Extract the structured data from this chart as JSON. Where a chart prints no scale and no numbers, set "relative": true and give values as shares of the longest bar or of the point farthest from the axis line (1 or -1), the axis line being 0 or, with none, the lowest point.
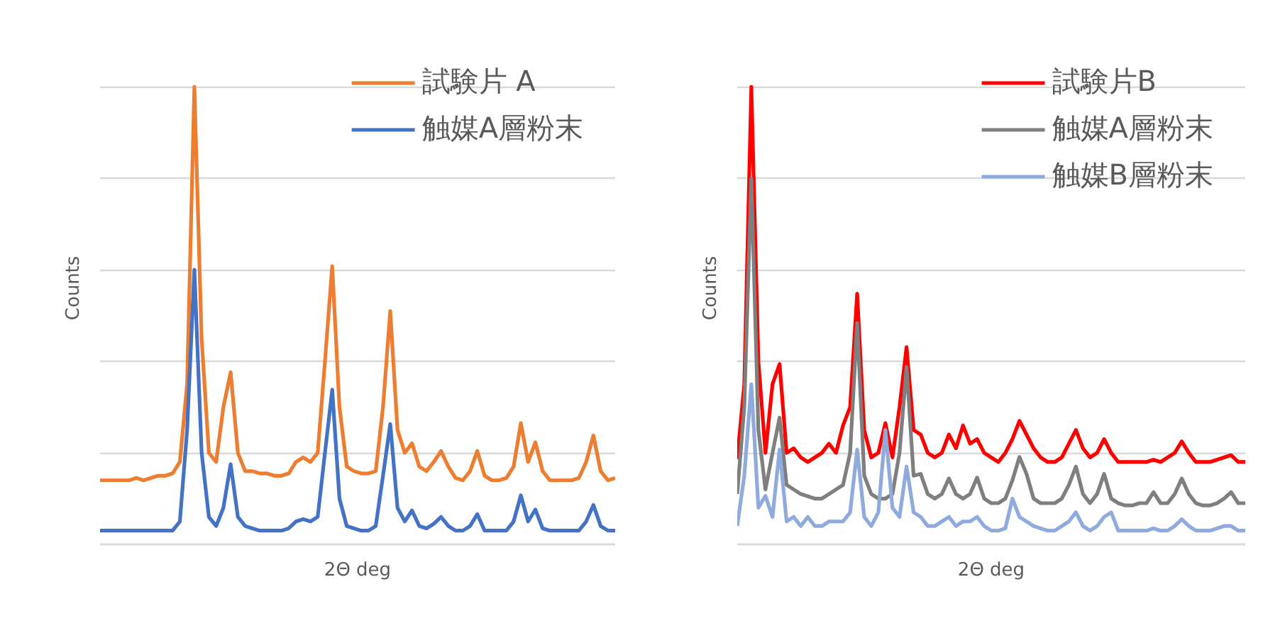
{
  "chart_data": [
    {
      "type": "line",
      "relative": true,
      "xlabel": "2Θ deg",
      "ylabel": "Counts",
      "grid": "y",
      "legend": "top right",
      "marker": "none",
      "line_style": "solid",
      "categories": [
        null,
        null,
        null,
        null,
        null,
        null,
        null,
        null,
        null,
        null,
        null,
        null,
        null,
        null,
        null,
        null,
        null,
        null,
        null,
        null,
        null,
        null,
        null,
        null,
        null,
        null,
        null,
        null,
        null,
        null,
        null,
        null,
        null,
        null,
        null,
        null,
        null,
        null,
        null,
        null,
        null,
        null,
        null,
        null,
        null,
        null,
        null,
        null,
        null,
        null,
        null,
        null,
        null,
        null,
        null,
        null,
        null,
        null,
        null,
        null,
        null,
        null,
        null,
        null,
        null,
        null,
        null,
        null,
        null,
        null,
        null,
        null
      ],
      "series": [
        {
          "name": "試験片 A",
          "color": "#ed7d31",
          "values": [
            0.14,
            0.14,
            0.14,
            0.14,
            0.14,
            0.145,
            0.14,
            0.145,
            0.15,
            0.15,
            0.155,
            0.18,
            0.35,
            1.0,
            0.45,
            0.2,
            0.18,
            0.3,
            0.376,
            0.2,
            0.16,
            0.16,
            0.155,
            0.155,
            0.15,
            0.15,
            0.155,
            0.18,
            0.19,
            0.18,
            0.2,
            0.4,
            0.608,
            0.3,
            0.17,
            0.16,
            0.155,
            0.155,
            0.16,
            0.3,
            0.51,
            0.25,
            0.2,
            0.221,
            0.17,
            0.16,
            0.18,
            0.204,
            0.17,
            0.145,
            0.14,
            0.16,
            0.204,
            0.15,
            0.14,
            0.14,
            0.145,
            0.17,
            0.265,
            0.18,
            0.223,
            0.16,
            0.14,
            0.14,
            0.14,
            0.14,
            0.145,
            0.18,
            0.238,
            0.16,
            0.14,
            0.145
          ]
        },
        {
          "name": "触媒A層粉末",
          "color": "#4472c4",
          "values": [
            0.03,
            0.03,
            0.03,
            0.03,
            0.03,
            0.03,
            0.03,
            0.03,
            0.03,
            0.03,
            0.03,
            0.05,
            0.25,
            0.6,
            0.2,
            0.06,
            0.04,
            0.08,
            0.175,
            0.06,
            0.04,
            0.035,
            0.03,
            0.03,
            0.03,
            0.03,
            0.035,
            0.05,
            0.055,
            0.05,
            0.06,
            0.2,
            0.338,
            0.1,
            0.04,
            0.035,
            0.03,
            0.03,
            0.04,
            0.15,
            0.263,
            0.08,
            0.05,
            0.074,
            0.04,
            0.035,
            0.045,
            0.06,
            0.04,
            0.03,
            0.03,
            0.04,
            0.066,
            0.03,
            0.03,
            0.03,
            0.03,
            0.05,
            0.107,
            0.05,
            0.076,
            0.035,
            0.03,
            0.03,
            0.03,
            0.03,
            0.03,
            0.05,
            0.086,
            0.04,
            0.03,
            0.03
          ]
        }
      ]
    },
    {
      "type": "line",
      "relative": true,
      "xlabel": "2Θ deg",
      "ylabel": "Counts",
      "grid": "y",
      "legend": "top right",
      "marker": "none",
      "line_style": "solid",
      "categories": [
        null,
        null,
        null,
        null,
        null,
        null,
        null,
        null,
        null,
        null,
        null,
        null,
        null,
        null,
        null,
        null,
        null,
        null,
        null,
        null,
        null,
        null,
        null,
        null,
        null,
        null,
        null,
        null,
        null,
        null,
        null,
        null,
        null,
        null,
        null,
        null,
        null,
        null,
        null,
        null,
        null,
        null,
        null,
        null,
        null,
        null,
        null,
        null,
        null,
        null,
        null,
        null,
        null,
        null,
        null,
        null,
        null,
        null,
        null,
        null,
        null,
        null,
        null,
        null,
        null,
        null,
        null,
        null,
        null,
        null,
        null,
        null,
        null
      ],
      "series": [
        {
          "name": "試験片B",
          "color": "#ff0000",
          "values": [
            0.186,
            0.35,
            1.0,
            0.4,
            0.2,
            0.35,
            0.394,
            0.2,
            0.21,
            0.19,
            0.18,
            0.19,
            0.2,
            0.22,
            0.2,
            0.26,
            0.3,
            0.548,
            0.25,
            0.19,
            0.2,
            0.265,
            0.19,
            0.3,
            0.431,
            0.25,
            0.24,
            0.2,
            0.19,
            0.2,
            0.24,
            0.21,
            0.26,
            0.22,
            0.23,
            0.2,
            0.19,
            0.18,
            0.2,
            0.23,
            0.27,
            0.24,
            0.21,
            0.19,
            0.18,
            0.18,
            0.19,
            0.22,
            0.25,
            0.21,
            0.19,
            0.2,
            0.23,
            0.2,
            0.18,
            0.18,
            0.18,
            0.18,
            0.18,
            0.185,
            0.18,
            0.19,
            0.2,
            0.225,
            0.2,
            0.18,
            0.18,
            0.18,
            0.185,
            0.19,
            0.195,
            0.18,
            0.18
          ]
        },
        {
          "name": "触媒A層粉末",
          "color": "#7f7f7f",
          "values": [
            0.11,
            0.3,
            0.8,
            0.25,
            0.12,
            0.2,
            0.277,
            0.13,
            0.12,
            0.11,
            0.105,
            0.1,
            0.1,
            0.11,
            0.12,
            0.13,
            0.2,
            0.484,
            0.15,
            0.11,
            0.1,
            0.1,
            0.11,
            0.2,
            0.388,
            0.15,
            0.154,
            0.11,
            0.1,
            0.11,
            0.144,
            0.11,
            0.1,
            0.11,
            0.146,
            0.1,
            0.09,
            0.09,
            0.1,
            0.14,
            0.191,
            0.154,
            0.1,
            0.09,
            0.09,
            0.09,
            0.1,
            0.13,
            0.17,
            0.11,
            0.09,
            0.11,
            0.154,
            0.1,
            0.09,
            0.085,
            0.085,
            0.09,
            0.09,
            0.114,
            0.09,
            0.09,
            0.11,
            0.144,
            0.11,
            0.09,
            0.085,
            0.085,
            0.09,
            0.1,
            0.114,
            0.09,
            0.09
          ]
        },
        {
          "name": "触媒B層粉末",
          "color": "#8faadc",
          "values": [
            0.04,
            0.15,
            0.35,
            0.08,
            0.106,
            0.06,
            0.207,
            0.05,
            0.06,
            0.04,
            0.06,
            0.04,
            0.04,
            0.05,
            0.05,
            0.05,
            0.07,
            0.207,
            0.06,
            0.04,
            0.07,
            0.25,
            0.08,
            0.06,
            0.17,
            0.07,
            0.06,
            0.04,
            0.04,
            0.05,
            0.06,
            0.04,
            0.05,
            0.05,
            0.06,
            0.04,
            0.03,
            0.03,
            0.035,
            0.1,
            0.06,
            0.05,
            0.04,
            0.035,
            0.03,
            0.03,
            0.04,
            0.05,
            0.07,
            0.04,
            0.03,
            0.04,
            0.06,
            0.07,
            0.03,
            0.03,
            0.03,
            0.03,
            0.03,
            0.035,
            0.03,
            0.03,
            0.04,
            0.055,
            0.04,
            0.03,
            0.03,
            0.03,
            0.035,
            0.04,
            0.04,
            0.03,
            0.03
          ]
        }
      ]
    }
  ]
}
